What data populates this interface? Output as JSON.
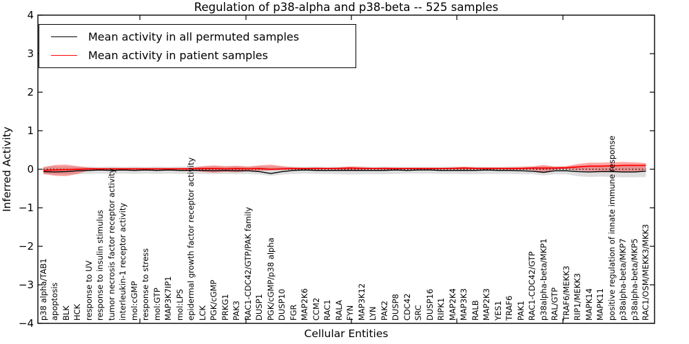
{
  "title": "Regulation of p38-alpha and p38-beta -- 525 samples",
  "legend": {
    "items": [
      {
        "label": "Mean activity in all permuted samples",
        "color": "#000000"
      },
      {
        "label": "Mean activity in patient samples",
        "color": "#ff0000"
      }
    ]
  },
  "axes": {
    "y_label": "Inferred Activity",
    "x_label": "Cellular Entities",
    "y_tick_labels": [
      "4",
      "3",
      "2",
      "1",
      "0",
      "−1",
      "−2",
      "−3",
      "−4"
    ]
  },
  "colors": {
    "permuted_line": "#000000",
    "patient_line": "#ff0000",
    "permuted_band": "#999999",
    "patient_band": "#ff0000",
    "reference_line": "#000000"
  },
  "chart_data": {
    "type": "line",
    "title": "Regulation of p38-alpha and p38-beta -- 525 samples",
    "xlabel": "Cellular Entities",
    "ylabel": "Inferred Activity",
    "ylim": [
      -4,
      4
    ],
    "yticks": [
      4,
      3,
      2,
      1,
      0,
      -1,
      -2,
      -3,
      -4
    ],
    "grid": false,
    "legend_position": "upper left",
    "categories": [
      "p38 alpha/TAB1",
      "apoptosis",
      "BLK",
      "HCK",
      "response to UV",
      "response to insulin stimulus",
      "tumor necrosis factor receptor activity",
      "interleukin-1 receptor activity",
      "mol:cGMP",
      "response to stress",
      "mol:GTP",
      "MAP3K7IP1",
      "mol:LPS",
      "epidermal growth factor receptor activity",
      "LCK",
      "PGK/cGMP",
      "PRKG1",
      "PAK3",
      "RAC1-CDC42/GTP/PAK family",
      "DUSP1",
      "PGK/cGMP/p38 alpha",
      "DUSP10",
      "FGR",
      "MAP2K6",
      "CCM2",
      "RAC1",
      "RALA",
      "FYN",
      "MAP3K12",
      "LYN",
      "PAK2",
      "DUSP8",
      "CDC42",
      "SRC",
      "DUSP16",
      "RIPK1",
      "MAP2K4",
      "MAP3K3",
      "RALB",
      "MAP2K3",
      "YES1",
      "TRAF6",
      "PAK1",
      "RAC1-CDC42/GTP",
      "p38alpha-beta/MKP1",
      "RAL/GTP",
      "TRAF6/MEKK3",
      "RIP1/MEKK3",
      "MAPK14",
      "MAPK11",
      "positive regulation of innate immune response",
      "p38alpha-beta/MKP7",
      "p38alpha-beta/MKP5",
      "RAC1/OSM/MEKK3/MKK3"
    ],
    "series": [
      {
        "name": "Mean activity in all permuted samples",
        "color": "#000000",
        "values": [
          -0.06,
          -0.07,
          -0.06,
          -0.04,
          -0.03,
          -0.02,
          -0.03,
          -0.02,
          -0.03,
          -0.02,
          -0.03,
          -0.02,
          -0.03,
          -0.03,
          -0.03,
          -0.04,
          -0.03,
          -0.04,
          -0.04,
          -0.06,
          -0.11,
          -0.06,
          -0.03,
          -0.02,
          -0.03,
          -0.03,
          -0.03,
          -0.03,
          -0.03,
          -0.03,
          -0.03,
          -0.02,
          -0.03,
          -0.02,
          -0.02,
          -0.03,
          -0.03,
          -0.03,
          -0.03,
          -0.02,
          -0.03,
          -0.03,
          -0.04,
          -0.05,
          -0.08,
          -0.04,
          -0.04,
          -0.06,
          -0.07,
          -0.06,
          -0.06,
          -0.07,
          -0.07,
          -0.05
        ]
      },
      {
        "name": "Mean activity in patient samples",
        "color": "#ff0000",
        "values": [
          -0.03,
          -0.02,
          -0.01,
          0.0,
          0.01,
          0.01,
          0.01,
          0.01,
          0.01,
          0.01,
          0.01,
          0.01,
          0.01,
          0.01,
          0.02,
          0.02,
          0.01,
          0.02,
          0.01,
          0.02,
          0.0,
          0.01,
          0.02,
          0.02,
          0.02,
          0.02,
          0.02,
          0.03,
          0.02,
          0.02,
          0.02,
          0.02,
          0.02,
          0.02,
          0.02,
          0.02,
          0.02,
          0.03,
          0.02,
          0.02,
          0.02,
          0.02,
          0.02,
          0.03,
          0.03,
          0.03,
          0.04,
          0.06,
          0.08,
          0.08,
          0.09,
          0.1,
          0.1,
          0.1
        ]
      }
    ],
    "bands": [
      {
        "name": "permuted samples range",
        "color": "#999999",
        "opacity": 0.32,
        "upper": [
          0.07,
          0.08,
          0.08,
          0.07,
          0.07,
          0.06,
          0.07,
          0.06,
          0.07,
          0.06,
          0.07,
          0.06,
          0.07,
          0.07,
          0.07,
          0.08,
          0.07,
          0.08,
          0.07,
          0.08,
          0.08,
          0.07,
          0.07,
          0.06,
          0.07,
          0.06,
          0.07,
          0.07,
          0.07,
          0.06,
          0.07,
          0.06,
          0.06,
          0.06,
          0.06,
          0.06,
          0.07,
          0.07,
          0.07,
          0.06,
          0.06,
          0.07,
          0.07,
          0.07,
          0.08,
          0.07,
          0.07,
          0.09,
          0.1,
          0.1,
          0.1,
          0.1,
          0.1,
          0.1
        ],
        "lower": [
          -0.13,
          -0.14,
          -0.14,
          -0.13,
          -0.12,
          -0.11,
          -0.12,
          -0.11,
          -0.12,
          -0.11,
          -0.12,
          -0.11,
          -0.12,
          -0.12,
          -0.12,
          -0.13,
          -0.12,
          -0.13,
          -0.12,
          -0.14,
          -0.17,
          -0.14,
          -0.12,
          -0.11,
          -0.12,
          -0.12,
          -0.13,
          -0.14,
          -0.13,
          -0.13,
          -0.13,
          -0.12,
          -0.11,
          -0.11,
          -0.11,
          -0.12,
          -0.12,
          -0.13,
          -0.13,
          -0.12,
          -0.12,
          -0.12,
          -0.13,
          -0.13,
          -0.16,
          -0.13,
          -0.13,
          -0.18,
          -0.2,
          -0.19,
          -0.2,
          -0.21,
          -0.21,
          -0.2
        ]
      },
      {
        "name": "patient samples range",
        "color": "#ff0000",
        "opacity": 0.35,
        "upper": [
          0.05,
          0.11,
          0.12,
          0.08,
          0.04,
          0.03,
          0.03,
          0.03,
          0.03,
          0.03,
          0.03,
          0.03,
          0.03,
          0.04,
          0.08,
          0.1,
          0.08,
          0.09,
          0.07,
          0.1,
          0.12,
          0.08,
          0.05,
          0.04,
          0.05,
          0.04,
          0.05,
          0.07,
          0.06,
          0.04,
          0.05,
          0.04,
          0.04,
          0.04,
          0.04,
          0.04,
          0.05,
          0.06,
          0.05,
          0.05,
          0.05,
          0.05,
          0.06,
          0.07,
          0.11,
          0.07,
          0.08,
          0.14,
          0.17,
          0.17,
          0.18,
          0.19,
          0.18,
          0.16
        ],
        "lower": [
          -0.12,
          -0.17,
          -0.18,
          -0.12,
          -0.03,
          -0.01,
          -0.01,
          -0.01,
          -0.01,
          -0.01,
          -0.01,
          -0.01,
          -0.01,
          -0.02,
          -0.07,
          -0.09,
          -0.07,
          -0.08,
          -0.05,
          -0.04,
          -0.03,
          -0.02,
          -0.01,
          0.0,
          -0.01,
          0.0,
          -0.01,
          -0.02,
          -0.01,
          0.0,
          -0.01,
          0.0,
          0.0,
          0.0,
          0.0,
          0.0,
          0.0,
          -0.01,
          0.0,
          0.0,
          0.0,
          -0.01,
          -0.01,
          -0.02,
          -0.08,
          -0.01,
          0.0,
          -0.03,
          -0.05,
          -0.05,
          -0.06,
          -0.07,
          -0.06,
          -0.03
        ]
      }
    ],
    "reference_line": {
      "y": 0,
      "style": "dotted",
      "color": "#000000"
    }
  }
}
